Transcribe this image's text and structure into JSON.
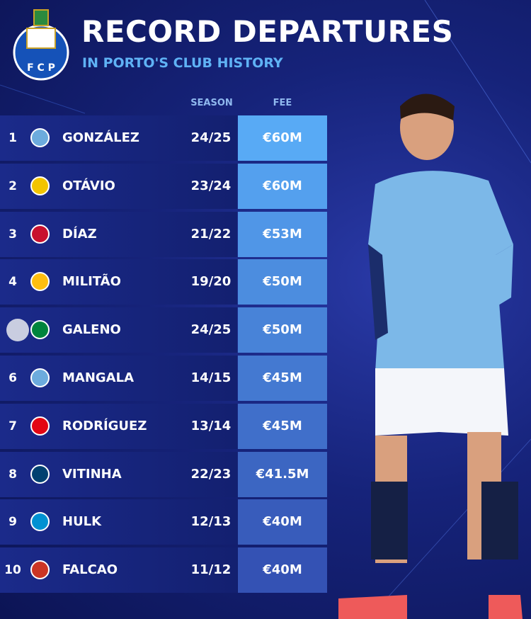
{
  "header": {
    "title": "RECORD DEPARTURES",
    "subtitle": "IN PORTO'S CLUB HISTORY"
  },
  "table": {
    "columns": [
      "SEASON",
      "FEE"
    ],
    "rows": [
      {
        "rank": "1",
        "player": "GONZÁLEZ",
        "season": "24/25",
        "fee": "€60M"
      },
      {
        "rank": "2",
        "player": "OTÁVIO",
        "season": "23/24",
        "fee": "€60M"
      },
      {
        "rank": "3",
        "player": "DÍAZ",
        "season": "21/22",
        "fee": "€53M"
      },
      {
        "rank": "4",
        "player": "MILITÃO",
        "season": "19/20",
        "fee": "€50M"
      },
      {
        "rank": null,
        "player": "GALENO",
        "season": "24/25",
        "fee": "€50M"
      },
      {
        "rank": "6",
        "player": "MANGALA",
        "season": "14/15",
        "fee": "€45M"
      },
      {
        "rank": "7",
        "player": "RODRÍGUEZ",
        "season": "13/14",
        "fee": "€45M"
      },
      {
        "rank": "8",
        "player": "VITINHA",
        "season": "22/23",
        "fee": "€41.5M"
      },
      {
        "rank": "9",
        "player": "HULK",
        "season": "12/13",
        "fee": "€40M"
      },
      {
        "rank": "10",
        "player": "FALCAO",
        "season": "11/12",
        "fee": "€40M"
      }
    ]
  }
}
